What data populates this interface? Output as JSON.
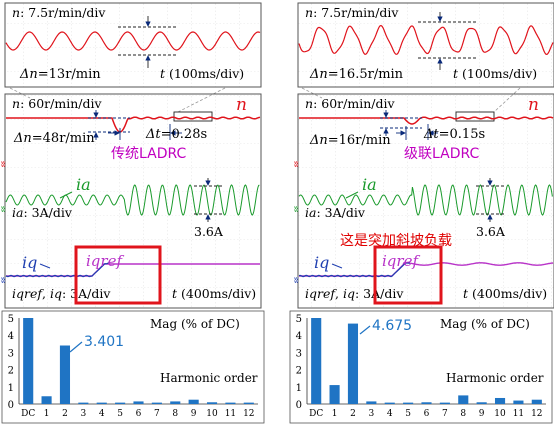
{
  "colors": {
    "speed": "#e0141c",
    "current": "#1a9a2c",
    "iq": "#1f3fb0",
    "iqref": "#b833c8",
    "bar": "#1f74c4",
    "annot": "#0d5b93",
    "highlight": "#e0141c",
    "label_left": "#c000c0",
    "label_right": "#c000c0",
    "overlay_note": "#e00000"
  },
  "panels": [
    {
      "id": "left",
      "zoom": {
        "scale_n": "n",
        "scale_text": ": 7.5r/min/div",
        "delta_n": "Δn",
        "delta_text": "=13r/min",
        "time_t": "t",
        "time_text": " (100ms/div)"
      },
      "scope": {
        "n_scale_n": "n",
        "n_scale_text": ": 60r/min/div",
        "n_label": "n",
        "dn_n": "Δn",
        "dn_text": "=48r/min",
        "dt_t": "Δt",
        "dt_text": "=0.28s",
        "method": "传统LADRC",
        "ia_label": "ia",
        "ia_scale_ia": "ia",
        "ia_scale_text": ": 3A/div",
        "ia_amp": "3.6A",
        "iq_label": "iq",
        "iqref_label": "iqref",
        "iq_scale_a": "iqref",
        "iq_scale_comma": ", ",
        "iq_scale_b": "iq",
        "iq_scale_text": ": 3A/div",
        "t_t": "t",
        "t_text": " (400ms/div)"
      },
      "harmonic": {
        "mag_label": "Mag  (% of DC)",
        "xlabel": "Harmonic order",
        "callout": "3.401",
        "y_ticks": [
          "5",
          "4",
          "3",
          "2",
          "1",
          "0"
        ]
      }
    },
    {
      "id": "right",
      "zoom": {
        "scale_n": "n",
        "scale_text": ": 7.5r/min/div",
        "delta_n": "Δn",
        "delta_text": "=16.5r/min",
        "time_t": "t",
        "time_text": " (100ms/div)"
      },
      "scope": {
        "n_scale_n": "n",
        "n_scale_text": ": 60r/min/div",
        "n_label": "n",
        "dn_n": "Δn",
        "dn_text": "=16r/min",
        "dt_t": "Δt",
        "dt_text": "=0.15s",
        "method": "级联LADRC",
        "ia_label": "ia",
        "ia_scale_ia": "ia",
        "ia_scale_text": ": 3A/div",
        "ia_amp": "3.6A",
        "iq_label": "iq",
        "iqref_label": "iqref",
        "iq_scale_a": "iqref",
        "iq_scale_comma": ", ",
        "iq_scale_b": "iq",
        "iq_scale_text": ": 3A/div",
        "t_t": "t",
        "t_text": " (400ms/div)",
        "overlay_note": "这是突加斜坡负载"
      },
      "harmonic": {
        "mag_label": "Mag  (% of DC)",
        "xlabel": "Harmonic order",
        "callout": "4.675",
        "y_ticks": [
          "5",
          "4",
          "3",
          "2",
          "1",
          "0"
        ]
      }
    }
  ],
  "chart_data": [
    {
      "type": "bar",
      "title": "",
      "xlabel": "Harmonic order",
      "ylabel": "Mag  (% of DC)",
      "ylim": [
        0,
        5
      ],
      "categories": [
        "DC",
        "1",
        "2",
        "3",
        "4",
        "5",
        "6",
        "7",
        "8",
        "9",
        "10",
        "11",
        "12"
      ],
      "values": [
        5,
        0.45,
        3.401,
        0.08,
        0.08,
        0.08,
        0.15,
        0.08,
        0.15,
        0.25,
        0.1,
        0.08,
        0.08
      ],
      "annotations": [
        "3.401"
      ]
    },
    {
      "type": "bar",
      "title": "",
      "xlabel": "Harmonic order",
      "ylabel": "Mag  (% of DC)",
      "ylim": [
        0,
        5
      ],
      "categories": [
        "DC",
        "1",
        "2",
        "3",
        "4",
        "5",
        "6",
        "7",
        "8",
        "9",
        "10",
        "11",
        "12"
      ],
      "values": [
        5,
        1.1,
        4.675,
        0.15,
        0.08,
        0.08,
        0.1,
        0.08,
        0.5,
        0.1,
        0.35,
        0.2,
        0.25
      ],
      "annotations": [
        "4.675"
      ]
    }
  ]
}
